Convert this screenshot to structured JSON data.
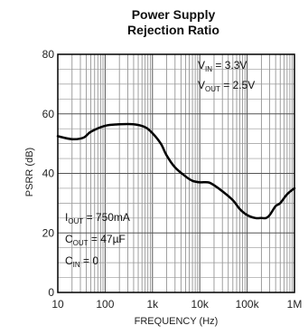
{
  "chart_data": {
    "type": "line",
    "title_line1": "Power Supply",
    "title_line2": "Rejection Ratio",
    "xlabel": "FREQUENCY (Hz)",
    "ylabel": "PSRR (dB)",
    "x_scale": "log",
    "xlim": [
      10,
      1000000
    ],
    "ylim": [
      0,
      80
    ],
    "x_ticks": [
      10,
      100,
      1000,
      10000,
      100000,
      1000000
    ],
    "x_tick_labels": [
      "10",
      "100",
      "1k",
      "10k",
      "100k",
      "1M"
    ],
    "y_ticks": [
      0,
      20,
      40,
      60,
      80
    ],
    "y_tick_labels": [
      "0",
      "20",
      "40",
      "60",
      "80"
    ],
    "grid": true,
    "series": [
      {
        "x": [
          10,
          20,
          35,
          50,
          100,
          200,
          400,
          700,
          1000,
          1500,
          2000,
          3000,
          5000,
          7000,
          10000,
          15000,
          20000,
          30000,
          50000,
          70000,
          100000,
          150000,
          200000,
          250000,
          300000,
          400000,
          500000,
          700000,
          1000000
        ],
        "y": [
          52.5,
          51.5,
          52,
          54,
          56,
          56.5,
          56.5,
          55.5,
          53.5,
          50,
          46,
          42,
          39,
          37.5,
          37,
          37,
          36,
          34,
          31,
          28,
          26,
          25,
          25,
          25,
          26,
          29,
          30,
          33,
          35
        ],
        "color": "#000000"
      }
    ],
    "annotations": {
      "top_right": {
        "vin_main": "V",
        "vin_sub": "IN",
        "vin_value": " = 3.3V",
        "vout_main": "V",
        "vout_sub": "OUT",
        "vout_value": " = 2.5V"
      },
      "bottom_left": {
        "iout_main": "I",
        "iout_sub": "OUT",
        "iout_value": " = 750mA",
        "cout_main": "C",
        "cout_sub": "OUT",
        "cout_value": " = 47µF",
        "cin_main": "C",
        "cin_sub": "IN",
        "cin_value": " = 0"
      }
    }
  }
}
